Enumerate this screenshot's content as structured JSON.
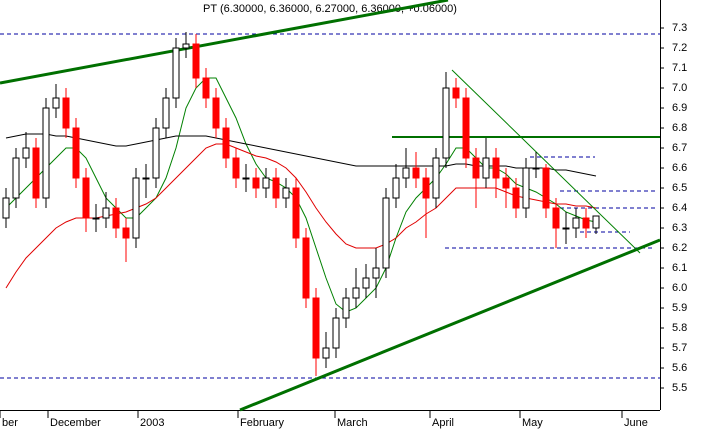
{
  "chart_data": {
    "type": "candlestick",
    "title": "PT (6.30000, 6.36000, 6.27000, 6.36000, +0.06000)",
    "xlim": [
      -0.6,
      65.4
    ],
    "ylim": [
      5.39,
      7.44
    ],
    "yticks": [
      5.5,
      5.6,
      5.7,
      5.8,
      5.9,
      {
        "value": 6.0,
        "label": "6.0"
      },
      6.1,
      6.2,
      6.3,
      6.4,
      6.5,
      6.6,
      6.7,
      6.8,
      6.9,
      {
        "value": 7.0,
        "label": "7.0"
      },
      7.1,
      7.2,
      7.3
    ],
    "xlabels": [
      {
        "at": -0.6,
        "label": "ber"
      },
      {
        "at": 4.2,
        "label": "December"
      },
      {
        "at": 13.2,
        "label": "2003"
      },
      {
        "at": 23.2,
        "label": "February"
      },
      {
        "at": 32.9,
        "label": "March"
      },
      {
        "at": 42.4,
        "label": "April"
      },
      {
        "at": 51.4,
        "label": "May"
      },
      {
        "at": 61.6,
        "label": "June"
      }
    ],
    "up_color": "#ffffff",
    "down_color": "#ff0000",
    "open": [
      6.35,
      6.45,
      6.65,
      6.7,
      6.45,
      6.9,
      6.95,
      6.8,
      6.55,
      6.35,
      6.35,
      6.4,
      6.3,
      6.25,
      6.55,
      6.55,
      6.8,
      6.95,
      7.2,
      7.22,
      7.05,
      6.95,
      6.8,
      6.65,
      6.55,
      6.55,
      6.5,
      6.55,
      6.45,
      6.5,
      6.25,
      5.95,
      5.65,
      5.7,
      5.85,
      5.95,
      6.0,
      6.05,
      6.1,
      6.45,
      6.55,
      6.6,
      6.55,
      6.45,
      6.65,
      7.0,
      6.95,
      6.65,
      6.55,
      6.65,
      6.55,
      6.5,
      6.4,
      6.6,
      6.6,
      6.4,
      6.3,
      6.3,
      6.35,
      6.3
    ],
    "high": [
      6.5,
      6.7,
      6.78,
      6.75,
      6.95,
      7.02,
      7.0,
      6.85,
      6.6,
      6.42,
      6.48,
      6.45,
      6.35,
      6.6,
      6.62,
      6.85,
      7.0,
      7.25,
      7.28,
      7.27,
      7.1,
      7.0,
      6.85,
      6.7,
      6.62,
      6.6,
      6.6,
      6.6,
      6.55,
      6.55,
      6.3,
      6.0,
      5.78,
      5.9,
      6.0,
      6.1,
      6.12,
      6.2,
      6.5,
      6.62,
      6.7,
      6.68,
      6.6,
      6.7,
      7.08,
      7.05,
      7.0,
      6.7,
      6.75,
      6.7,
      6.6,
      6.55,
      6.65,
      6.68,
      6.62,
      6.45,
      6.38,
      6.4,
      6.4,
      6.36
    ],
    "low": [
      6.3,
      6.4,
      6.6,
      6.4,
      6.4,
      6.85,
      6.75,
      6.5,
      6.28,
      6.28,
      6.3,
      6.25,
      6.13,
      6.2,
      6.45,
      6.5,
      6.75,
      6.9,
      7.15,
      7.0,
      6.9,
      6.75,
      6.6,
      6.5,
      6.48,
      6.45,
      6.45,
      6.4,
      6.4,
      6.2,
      5.9,
      5.56,
      5.6,
      5.65,
      5.8,
      5.9,
      5.95,
      5.95,
      6.05,
      6.4,
      6.5,
      6.5,
      6.25,
      6.4,
      6.6,
      6.9,
      6.6,
      6.4,
      6.5,
      6.45,
      6.4,
      6.35,
      6.35,
      6.55,
      6.35,
      6.2,
      6.22,
      6.25,
      6.25,
      6.27
    ],
    "close": [
      6.45,
      6.65,
      6.7,
      6.45,
      6.9,
      6.95,
      6.8,
      6.55,
      6.35,
      6.35,
      6.4,
      6.3,
      6.25,
      6.55,
      6.55,
      6.8,
      6.95,
      7.2,
      7.22,
      7.05,
      6.95,
      6.8,
      6.65,
      6.55,
      6.55,
      6.5,
      6.55,
      6.45,
      6.5,
      6.25,
      5.95,
      5.65,
      5.7,
      5.85,
      5.95,
      6.0,
      6.05,
      6.1,
      6.45,
      6.55,
      6.6,
      6.55,
      6.45,
      6.65,
      7.0,
      6.95,
      6.65,
      6.55,
      6.65,
      6.55,
      6.5,
      6.4,
      6.6,
      6.6,
      6.4,
      6.3,
      6.3,
      6.35,
      6.3,
      6.36
    ],
    "series": [
      {
        "color": "#008000",
        "values": [
          6.4,
          6.45,
          6.5,
          6.55,
          6.6,
          6.65,
          6.7,
          6.7,
          6.65,
          6.55,
          6.45,
          6.4,
          6.35,
          6.35,
          6.4,
          6.45,
          6.55,
          6.7,
          6.9,
          7.0,
          7.05,
          7.05,
          6.95,
          6.85,
          6.72,
          6.62,
          6.55,
          6.53,
          6.5,
          6.45,
          6.35,
          6.2,
          6.05,
          5.92,
          5.88,
          5.9,
          5.95,
          6.0,
          6.1,
          6.25,
          6.38,
          6.45,
          6.5,
          6.55,
          6.62,
          6.7,
          6.7,
          6.65,
          6.6,
          6.6,
          6.57,
          6.52,
          6.5,
          6.48,
          6.45,
          6.42,
          6.38,
          6.36,
          6.34,
          6.33
        ]
      },
      {
        "color": "#e00000",
        "values": [
          6.0,
          6.08,
          6.15,
          6.2,
          6.25,
          6.3,
          6.33,
          6.35,
          6.35,
          6.35,
          6.36,
          6.37,
          6.38,
          6.4,
          6.42,
          6.45,
          6.5,
          6.55,
          6.6,
          6.65,
          6.7,
          6.72,
          6.72,
          6.7,
          6.68,
          6.66,
          6.65,
          6.63,
          6.6,
          6.55,
          6.48,
          6.4,
          6.33,
          6.27,
          6.22,
          6.2,
          6.2,
          6.2,
          6.22,
          6.25,
          6.3,
          6.33,
          6.37,
          6.4,
          6.45,
          6.5,
          6.5,
          6.5,
          6.5,
          6.5,
          6.48,
          6.46,
          6.45,
          6.44,
          6.43,
          6.42,
          6.42,
          6.41,
          6.41,
          6.4
        ]
      },
      {
        "color": "#000000",
        "values": [
          6.75,
          6.76,
          6.77,
          6.77,
          6.77,
          6.76,
          6.76,
          6.75,
          6.74,
          6.73,
          6.72,
          6.71,
          6.71,
          6.72,
          6.73,
          6.74,
          6.75,
          6.76,
          6.76,
          6.76,
          6.76,
          6.75,
          6.74,
          6.73,
          6.72,
          6.71,
          6.7,
          6.69,
          6.68,
          6.67,
          6.66,
          6.65,
          6.64,
          6.63,
          6.62,
          6.61,
          6.61,
          6.61,
          6.61,
          6.61,
          6.61,
          6.61,
          6.61,
          6.61,
          6.61,
          6.62,
          6.62,
          6.61,
          6.61,
          6.61,
          6.61,
          6.6,
          6.6,
          6.6,
          6.6,
          6.59,
          6.59,
          6.58,
          6.57,
          6.56
        ]
      }
    ],
    "trendlines": [
      {
        "color": "#007000",
        "width": 3,
        "x": [
          -0.6,
          44.2
        ],
        "y": [
          7.025,
          7.44
        ]
      },
      {
        "color": "#007000",
        "width": 3,
        "x": [
          23.4,
          65.4
        ],
        "y": [
          5.39,
          6.24
        ]
      },
      {
        "color": "#007000",
        "width": 2,
        "x": [
          38.6,
          65.4
        ],
        "y": [
          6.755,
          6.755
        ]
      },
      {
        "color": "#008000",
        "width": 1,
        "x": [
          44.6,
          63.4
        ],
        "y": [
          7.09,
          6.175
        ]
      }
    ],
    "hlines": [
      {
        "color": "#0000a0",
        "x": [
          -0.6,
          65.4
        ],
        "y": 7.27
      },
      {
        "color": "#0000a0",
        "x": [
          -0.6,
          65.4
        ],
        "y": 5.55
      },
      {
        "color": "#0000a0",
        "x": [
          52.4,
          58.9
        ],
        "y": 6.655
      },
      {
        "color": "#0000a0",
        "x": [
          55.4,
          64.9
        ],
        "y": 6.485
      },
      {
        "color": "#0000a0",
        "x": [
          55.4,
          64.9
        ],
        "y": 6.4
      },
      {
        "color": "#0000a0",
        "x": [
          57.4,
          62.4
        ],
        "y": 6.28
      },
      {
        "color": "#0000a0",
        "x": [
          43.9,
          64.9
        ],
        "y": 6.2
      }
    ]
  }
}
